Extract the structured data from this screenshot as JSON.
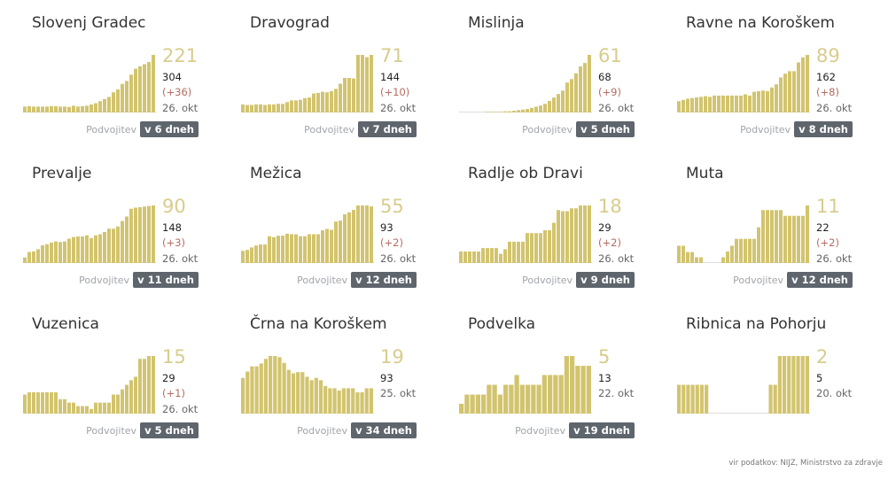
{
  "doubling_label": "Podvojitev",
  "footer": "vir podatkov: NIJZ, Ministrstvo za zdravje",
  "colors": {
    "bar": "#d2c46e",
    "baseline": "#dddddd",
    "big": "#d8cc8c",
    "change": "#b56b60",
    "badge": "#5e656d"
  },
  "chart_data": [
    {
      "type": "bar",
      "title": "Slovenj Gradec",
      "big": "221",
      "total": "304",
      "change": "(+36)",
      "date": "26. okt",
      "doubling": "v 6 dneh",
      "values": [
        14,
        15,
        14,
        14,
        14,
        14,
        15,
        15,
        14,
        14,
        13,
        16,
        14,
        15,
        16,
        19,
        22,
        27,
        32,
        37,
        48,
        55,
        68,
        75,
        90,
        104,
        110,
        115,
        120,
        137
      ]
    },
    {
      "type": "bar",
      "title": "Dravograd",
      "big": "71",
      "total": "144",
      "change": "(+10)",
      "date": "26. okt",
      "doubling": "v 7 dneh",
      "values": [
        14,
        13,
        13,
        14,
        14,
        13,
        14,
        14,
        15,
        15,
        18,
        21,
        21,
        22,
        25,
        26,
        33,
        34,
        36,
        35,
        37,
        41,
        50,
        60,
        60,
        59,
        100,
        100,
        96,
        100
      ]
    },
    {
      "type": "bar",
      "title": "Mislinja",
      "big": "61",
      "total": "68",
      "change": "(+9)",
      "date": "26. okt",
      "doubling": "v 5 dneh",
      "values": [
        0,
        0,
        0,
        0,
        0,
        0,
        1,
        1,
        1,
        1,
        2,
        2,
        3,
        4,
        5,
        6,
        8,
        10,
        12,
        15,
        20,
        26,
        32,
        38,
        52,
        58,
        68,
        80,
        86,
        100
      ]
    },
    {
      "type": "bar",
      "title": "Ravne na Koroškem",
      "big": "89",
      "total": "162",
      "change": "(+8)",
      "date": "26. okt",
      "doubling": "v 8 dneh",
      "values": [
        18,
        20,
        22,
        23,
        24,
        25,
        26,
        25,
        27,
        27,
        27,
        27,
        27,
        27,
        27,
        29,
        27,
        33,
        34,
        35,
        34,
        40,
        45,
        56,
        62,
        66,
        66,
        80,
        88,
        92
      ]
    },
    {
      "type": "bar",
      "title": "Prevalje",
      "big": "90",
      "total": "148",
      "change": "(+3)",
      "date": "26. okt",
      "doubling": "v 11 dneh",
      "values": [
        10,
        20,
        21,
        25,
        32,
        34,
        37,
        39,
        38,
        39,
        44,
        47,
        48,
        48,
        50,
        45,
        50,
        52,
        56,
        62,
        62,
        66,
        76,
        84,
        98,
        100,
        101,
        102,
        103,
        104
      ]
    },
    {
      "type": "bar",
      "title": "Mežica",
      "big": "55",
      "total": "93",
      "change": "(+2)",
      "date": "26. okt",
      "doubling": "v 12 dneh",
      "values": [
        25,
        27,
        32,
        36,
        38,
        38,
        55,
        53,
        56,
        56,
        60,
        59,
        59,
        55,
        55,
        59,
        59,
        59,
        67,
        70,
        68,
        85,
        87,
        100,
        104,
        109,
        118,
        118,
        118,
        116
      ]
    },
    {
      "type": "bar",
      "title": "Radlje ob Dravi",
      "big": "18",
      "total": "29",
      "change": "(+2)",
      "date": "26. okt",
      "doubling": "v 9 dneh",
      "values": [
        20,
        20,
        20,
        20,
        20,
        26,
        26,
        26,
        26,
        16,
        24,
        37,
        37,
        37,
        37,
        52,
        52,
        52,
        52,
        57,
        57,
        70,
        92,
        90,
        90,
        95,
        95,
        100,
        100,
        100
      ]
    },
    {
      "type": "bar",
      "title": "Muta",
      "big": "11",
      "total": "22",
      "change": "(+2)",
      "date": "26. okt",
      "doubling": "v 12 dneh",
      "values": [
        30,
        30,
        19,
        19,
        10,
        10,
        0,
        0,
        0,
        0,
        10,
        20,
        30,
        42,
        42,
        42,
        42,
        42,
        62,
        92,
        92,
        92,
        92,
        92,
        82,
        82,
        82,
        82,
        82,
        100
      ]
    },
    {
      "type": "bar",
      "title": "Vuzenica",
      "big": "15",
      "total": "29",
      "change": "(+1)",
      "date": "26. okt",
      "doubling": "v 5 dneh",
      "values": [
        33,
        37,
        37,
        37,
        37,
        37,
        37,
        37,
        25,
        25,
        19,
        19,
        13,
        13,
        13,
        8,
        19,
        19,
        19,
        19,
        33,
        33,
        42,
        50,
        58,
        64,
        95,
        95,
        100,
        100
      ]
    },
    {
      "type": "bar",
      "title": "Črna na Koroškem",
      "big": "19",
      "total": "93",
      "change": null,
      "date": "25. okt",
      "doubling": "v 34 dneh",
      "values": [
        62,
        73,
        82,
        82,
        87,
        95,
        100,
        100,
        98,
        88,
        76,
        70,
        72,
        72,
        64,
        58,
        62,
        58,
        48,
        44,
        44,
        40,
        44,
        44,
        44,
        37,
        37,
        44,
        44
      ]
    },
    {
      "type": "bar",
      "title": "Podvelka",
      "big": "5",
      "total": "13",
      "change": null,
      "date": "22. okt",
      "doubling": "v 19 dneh",
      "values": [
        17,
        33,
        33,
        33,
        33,
        50,
        50,
        33,
        50,
        50,
        67,
        50,
        50,
        50,
        50,
        67,
        67,
        67,
        67,
        100,
        100,
        83,
        83,
        83
      ]
    },
    {
      "type": "bar",
      "title": "Ribnica na Pohorju",
      "big": "2",
      "total": "5",
      "change": null,
      "date": "20. okt",
      "doubling": null,
      "values": [
        50,
        50,
        50,
        50,
        50,
        50,
        50,
        0,
        0,
        0,
        0,
        0,
        0,
        0,
        0,
        0,
        0,
        0,
        0,
        0,
        50,
        50,
        100,
        100,
        100,
        100,
        100,
        100,
        100
      ]
    }
  ]
}
